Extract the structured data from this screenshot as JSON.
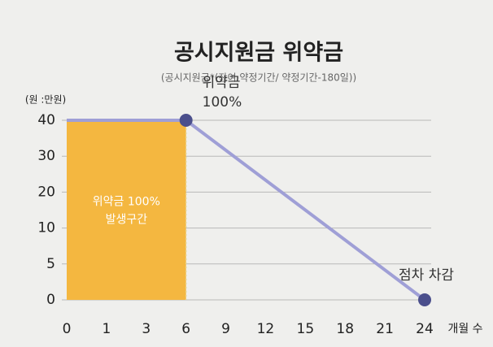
{
  "chart_data": {
    "type": "line",
    "title": "공시지원금 위약금",
    "subtitle": "(공시지원금*(잔여 약정기간/ 약정기간-180일))",
    "y_unit": "(원 :만원)",
    "x_unit": "개월 수",
    "x": [
      0,
      6,
      24
    ],
    "series": [
      {
        "color": "#9f9fd6",
        "values": [
          40,
          40,
          0
        ]
      }
    ],
    "marker_color": "#4b4f8c",
    "xlim": [
      0,
      24
    ],
    "xticks": [
      0,
      1,
      3,
      6,
      9,
      12,
      15,
      18,
      21,
      24
    ],
    "ylim": [
      0,
      40
    ],
    "yticks": [
      0,
      5,
      10,
      20,
      30,
      40
    ],
    "grid": true,
    "shaded_region": {
      "x": [
        0,
        6
      ],
      "y": 40,
      "color": "#f4b740",
      "label": [
        "위약금 100%",
        "발생구간"
      ]
    },
    "annotations": [
      {
        "lines": [
          "위약금",
          "100%"
        ],
        "x": 6,
        "y": 40
      },
      {
        "lines": [
          "점차 차감"
        ],
        "x": 24,
        "y": 0
      }
    ]
  }
}
